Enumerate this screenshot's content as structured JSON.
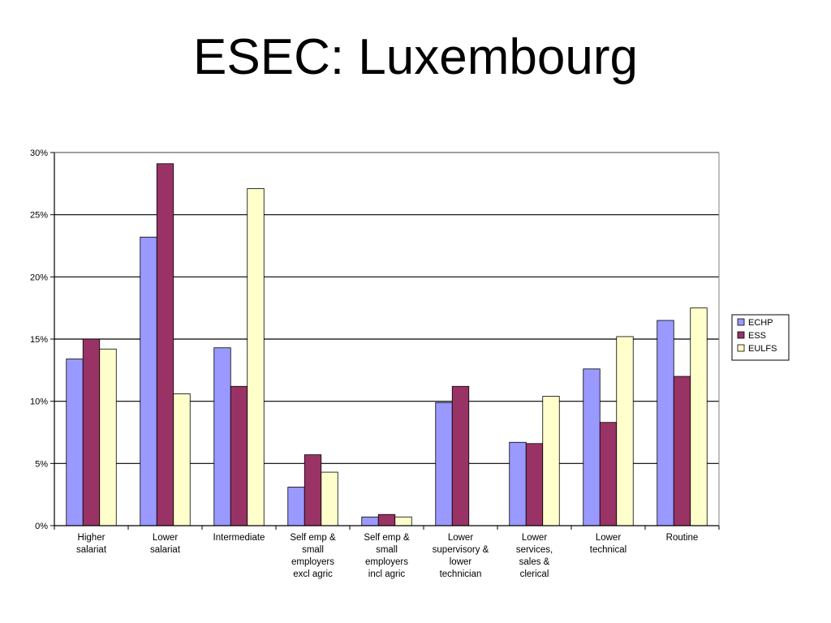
{
  "slide": {
    "title": "ESEC: Luxembourg"
  },
  "chart_data": {
    "type": "bar",
    "title": "",
    "xlabel": "",
    "ylabel": "",
    "ylim": [
      0,
      30
    ],
    "y_ticks": [
      0,
      5,
      10,
      15,
      20,
      25,
      30
    ],
    "y_tick_labels": [
      "0%",
      "5%",
      "10%",
      "15%",
      "20%",
      "25%",
      "30%"
    ],
    "grid": true,
    "legend_position": "right",
    "categories": [
      [
        "Higher",
        "salariat"
      ],
      [
        "Lower",
        "salariat"
      ],
      [
        "Intermediate"
      ],
      [
        "Self emp &",
        "small",
        "employers",
        "excl agric"
      ],
      [
        "Self emp &",
        "small",
        "employers",
        "incl agric"
      ],
      [
        "Lower",
        "supervisory &",
        "lower",
        "technician"
      ],
      [
        "Lower",
        "services,",
        "sales &",
        "clerical"
      ],
      [
        "Lower",
        "technical"
      ],
      [
        "Routine"
      ]
    ],
    "series": [
      {
        "name": "ECHP",
        "color": "#9999ff",
        "values": [
          13.4,
          23.2,
          14.3,
          3.1,
          0.7,
          9.9,
          6.7,
          12.6,
          16.5
        ]
      },
      {
        "name": "ESS",
        "color": "#993366",
        "values": [
          15.0,
          29.1,
          11.2,
          5.7,
          0.9,
          11.2,
          6.6,
          8.3,
          12.0
        ]
      },
      {
        "name": "EULFS",
        "color": "#ffffcc",
        "values": [
          14.2,
          10.6,
          27.1,
          4.3,
          0.7,
          null,
          10.4,
          15.2,
          17.5
        ]
      }
    ]
  }
}
